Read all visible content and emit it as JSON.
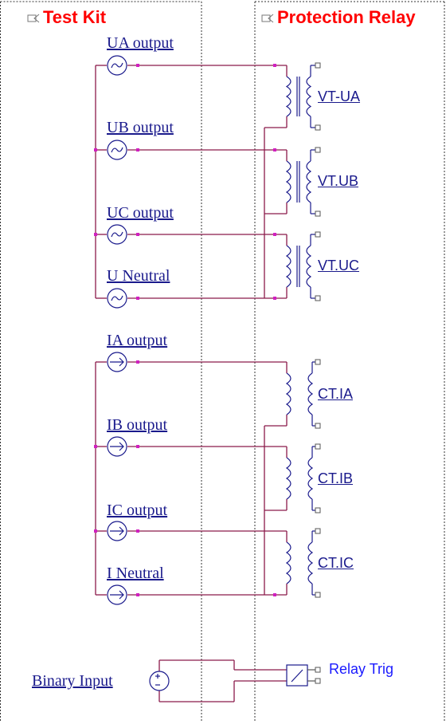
{
  "panels": {
    "left_title": "Test Kit",
    "right_title": "Protection Relay",
    "title_color": "#ff0000"
  },
  "sources": {
    "ua": "UA output",
    "ub": "UB output",
    "uc": "UC output",
    "un": "U Neutral",
    "ia": "IA output",
    "ib": "IB output",
    "ic": "IC output",
    "in": "I Neutral",
    "binary": "Binary Input"
  },
  "relay": {
    "vt_ua": "VT-UA",
    "vt_ub": "VT.UB",
    "vt_uc": "VT.UC",
    "ct_ia": "CT.IA",
    "ct_ib": "CT.IB",
    "ct_ic": "CT.IC",
    "relay_trig": "Relay Trig"
  },
  "colors": {
    "wire": "#8b1a4a",
    "node": "#d020c0",
    "component": "#1a1a8c",
    "terminal": "#555555",
    "label": "#1a1a8c"
  },
  "icons": {
    "voltage_source": "ac-voltage-source-icon",
    "current_source": "current-source-icon",
    "dc_source": "dc-source-icon",
    "transformer": "transformer-icon",
    "panel": "panel-icon"
  }
}
